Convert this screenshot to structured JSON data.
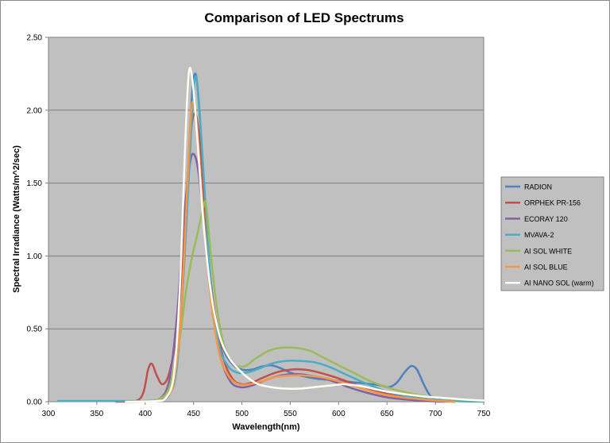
{
  "chart_data": {
    "type": "line",
    "title": "Comparison of LED Spectrums",
    "xlabel": "Wavelength(nm)",
    "ylabel": "Spectral Irradiance (Watts/m^2/sec)",
    "xlim": [
      300,
      750
    ],
    "ylim": [
      0,
      2.5
    ],
    "x_ticks": [
      300,
      350,
      400,
      450,
      500,
      550,
      600,
      650,
      700,
      750
    ],
    "y_ticks": [
      0,
      0.5,
      1.0,
      1.5,
      2.0,
      2.5
    ],
    "x_tick_labels": [
      "300",
      "350",
      "400",
      "450",
      "500",
      "550",
      "600",
      "650",
      "700",
      "750"
    ],
    "y_tick_labels": [
      "0.00",
      "0.50",
      "1.00",
      "1.50",
      "2.00",
      "2.50"
    ],
    "grid": "horizontal",
    "background": "#c0c0c0",
    "legend_position": "right",
    "series": [
      {
        "name": "RADION",
        "color": "#4f81bd",
        "points": [
          [
            380,
            0
          ],
          [
            410,
            0.005
          ],
          [
            425,
            0.05
          ],
          [
            435,
            0.4
          ],
          [
            442,
            1.2
          ],
          [
            448,
            2.05
          ],
          [
            452,
            2.25
          ],
          [
            456,
            2.0
          ],
          [
            462,
            1.3
          ],
          [
            470,
            0.7
          ],
          [
            480,
            0.38
          ],
          [
            490,
            0.26
          ],
          [
            500,
            0.22
          ],
          [
            510,
            0.22
          ],
          [
            520,
            0.24
          ],
          [
            530,
            0.25
          ],
          [
            540,
            0.23
          ],
          [
            550,
            0.2
          ],
          [
            560,
            0.18
          ],
          [
            575,
            0.16
          ],
          [
            590,
            0.15
          ],
          [
            605,
            0.14
          ],
          [
            620,
            0.13
          ],
          [
            635,
            0.12
          ],
          [
            645,
            0.11
          ],
          [
            652,
            0.1
          ],
          [
            660,
            0.13
          ],
          [
            668,
            0.2
          ],
          [
            675,
            0.245
          ],
          [
            681,
            0.22
          ],
          [
            688,
            0.12
          ],
          [
            695,
            0.04
          ],
          [
            705,
            0.005
          ],
          [
            720,
            0
          ]
        ]
      },
      {
        "name": "ORPHEK PR-156",
        "color": "#c0504d",
        "points": [
          [
            370,
            0
          ],
          [
            390,
            0.005
          ],
          [
            398,
            0.06
          ],
          [
            403,
            0.22
          ],
          [
            407,
            0.26
          ],
          [
            412,
            0.18
          ],
          [
            418,
            0.12
          ],
          [
            425,
            0.2
          ],
          [
            433,
            0.5
          ],
          [
            440,
            1.1
          ],
          [
            446,
            1.75
          ],
          [
            451,
            1.98
          ],
          [
            456,
            1.8
          ],
          [
            462,
            1.25
          ],
          [
            470,
            0.7
          ],
          [
            480,
            0.32
          ],
          [
            490,
            0.16
          ],
          [
            500,
            0.12
          ],
          [
            510,
            0.13
          ],
          [
            520,
            0.16
          ],
          [
            535,
            0.2
          ],
          [
            550,
            0.22
          ],
          [
            565,
            0.22
          ],
          [
            580,
            0.2
          ],
          [
            600,
            0.16
          ],
          [
            620,
            0.11
          ],
          [
            640,
            0.07
          ],
          [
            660,
            0.04
          ],
          [
            680,
            0.02
          ],
          [
            700,
            0.008
          ],
          [
            720,
            0
          ]
        ]
      },
      {
        "name": "ECORAY 120",
        "color": "#8064a2",
        "points": [
          [
            380,
            0
          ],
          [
            400,
            0.003
          ],
          [
            415,
            0.02
          ],
          [
            425,
            0.15
          ],
          [
            433,
            0.6
          ],
          [
            440,
            1.25
          ],
          [
            446,
            1.62
          ],
          [
            450,
            1.7
          ],
          [
            455,
            1.58
          ],
          [
            462,
            1.15
          ],
          [
            470,
            0.62
          ],
          [
            478,
            0.3
          ],
          [
            488,
            0.14
          ],
          [
            498,
            0.1
          ],
          [
            510,
            0.11
          ],
          [
            525,
            0.15
          ],
          [
            540,
            0.18
          ],
          [
            555,
            0.19
          ],
          [
            570,
            0.18
          ],
          [
            590,
            0.15
          ],
          [
            610,
            0.1
          ],
          [
            630,
            0.06
          ],
          [
            650,
            0.03
          ],
          [
            670,
            0.015
          ],
          [
            690,
            0.005
          ],
          [
            710,
            0
          ]
        ]
      },
      {
        "name": "MVAVA-2",
        "color": "#4bacc6",
        "points": [
          [
            310,
            0.005
          ],
          [
            330,
            0.005
          ],
          [
            350,
            0.005
          ],
          [
            380,
            0.005
          ],
          [
            410,
            0.01
          ],
          [
            425,
            0.05
          ],
          [
            433,
            0.25
          ],
          [
            440,
            0.9
          ],
          [
            446,
            1.65
          ],
          [
            451,
            2.2
          ],
          [
            455,
            2.1
          ],
          [
            461,
            1.5
          ],
          [
            468,
            0.8
          ],
          [
            476,
            0.4
          ],
          [
            485,
            0.25
          ],
          [
            495,
            0.2
          ],
          [
            505,
            0.2
          ],
          [
            515,
            0.22
          ],
          [
            530,
            0.26
          ],
          [
            545,
            0.28
          ],
          [
            560,
            0.28
          ],
          [
            575,
            0.27
          ],
          [
            590,
            0.24
          ],
          [
            610,
            0.18
          ],
          [
            630,
            0.12
          ],
          [
            650,
            0.07
          ],
          [
            670,
            0.04
          ],
          [
            690,
            0.02
          ],
          [
            710,
            0.008
          ],
          [
            730,
            0.002
          ],
          [
            750,
            0
          ]
        ]
      },
      {
        "name": "AI SOL WHITE",
        "color": "#9bbb59",
        "points": [
          [
            380,
            0
          ],
          [
            405,
            0.005
          ],
          [
            415,
            0.02
          ],
          [
            425,
            0.1
          ],
          [
            435,
            0.4
          ],
          [
            442,
            0.75
          ],
          [
            448,
            0.98
          ],
          [
            454,
            1.15
          ],
          [
            460,
            1.33
          ],
          [
            463,
            1.35
          ],
          [
            468,
            1.0
          ],
          [
            474,
            0.65
          ],
          [
            481,
            0.4
          ],
          [
            490,
            0.27
          ],
          [
            498,
            0.24
          ],
          [
            505,
            0.25
          ],
          [
            515,
            0.3
          ],
          [
            528,
            0.35
          ],
          [
            540,
            0.37
          ],
          [
            555,
            0.37
          ],
          [
            570,
            0.35
          ],
          [
            585,
            0.3
          ],
          [
            600,
            0.25
          ],
          [
            615,
            0.2
          ],
          [
            630,
            0.15
          ],
          [
            645,
            0.11
          ],
          [
            660,
            0.08
          ],
          [
            680,
            0.05
          ],
          [
            700,
            0.03
          ],
          [
            725,
            0.015
          ],
          [
            750,
            0.005
          ]
        ]
      },
      {
        "name": "AI SOL BLUE",
        "color": "#f79646",
        "points": [
          [
            380,
            0
          ],
          [
            410,
            0.005
          ],
          [
            422,
            0.03
          ],
          [
            430,
            0.15
          ],
          [
            437,
            0.6
          ],
          [
            443,
            1.4
          ],
          [
            447,
            1.95
          ],
          [
            450,
            2.05
          ],
          [
            454,
            1.85
          ],
          [
            460,
            1.3
          ],
          [
            468,
            0.7
          ],
          [
            477,
            0.32
          ],
          [
            487,
            0.17
          ],
          [
            497,
            0.12
          ],
          [
            508,
            0.12
          ],
          [
            520,
            0.14
          ],
          [
            535,
            0.17
          ],
          [
            550,
            0.18
          ],
          [
            565,
            0.18
          ],
          [
            580,
            0.17
          ],
          [
            600,
            0.14
          ],
          [
            620,
            0.1
          ],
          [
            640,
            0.06
          ],
          [
            660,
            0.035
          ],
          [
            680,
            0.02
          ],
          [
            700,
            0.008
          ],
          [
            720,
            0
          ]
        ]
      },
      {
        "name": "AI NANO SOL (warm)",
        "color": "#fefef4",
        "points": [
          [
            380,
            0
          ],
          [
            410,
            0.004
          ],
          [
            422,
            0.03
          ],
          [
            430,
            0.2
          ],
          [
            436,
            0.8
          ],
          [
            441,
            1.7
          ],
          [
            445,
            2.25
          ],
          [
            449,
            2.2
          ],
          [
            454,
            1.8
          ],
          [
            460,
            1.25
          ],
          [
            468,
            0.75
          ],
          [
            477,
            0.45
          ],
          [
            487,
            0.3
          ],
          [
            497,
            0.22
          ],
          [
            507,
            0.16
          ],
          [
            517,
            0.12
          ],
          [
            530,
            0.1
          ],
          [
            545,
            0.09
          ],
          [
            560,
            0.09
          ],
          [
            575,
            0.1
          ],
          [
            590,
            0.11
          ],
          [
            605,
            0.12
          ],
          [
            620,
            0.11
          ],
          [
            635,
            0.09
          ],
          [
            650,
            0.07
          ],
          [
            670,
            0.05
          ],
          [
            690,
            0.035
          ],
          [
            710,
            0.025
          ],
          [
            730,
            0.015
          ],
          [
            750,
            0.008
          ]
        ]
      }
    ]
  }
}
